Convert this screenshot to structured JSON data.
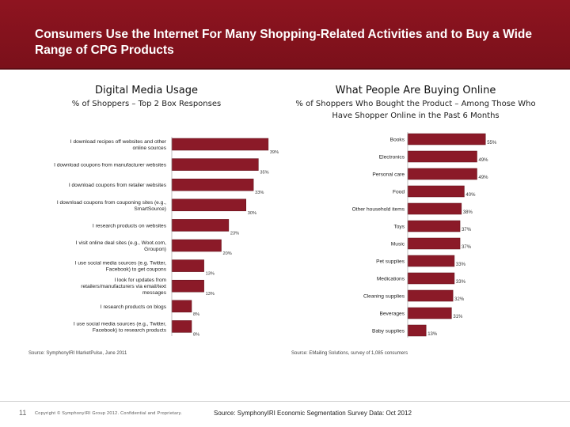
{
  "header": {
    "title": "Consumers Use the Internet For Many Shopping-Related Activities and to Buy a Wide Range of CPG Products"
  },
  "left_panel": {
    "title": "Digital Media Usage",
    "subtitle": "% of Shoppers – Top 2 Box Responses",
    "source": "Source: SymphonyIRI MarketPulse, June 2011"
  },
  "right_panel": {
    "title": "What People Are Buying Online",
    "subtitle": "% of Shoppers Who Bought the Product – Among Those Who Have Shopper Online in the Past 6 Months",
    "source": "Source: EMailing Solutions, survey of 1,085 consumers"
  },
  "footer": {
    "page_number": "11",
    "copyright": "Copyright © SymphonyIRI Group 2012. Confidential and Proprietary.",
    "source": "Source: SymphonyIRI Economic Segmentation Survey Data: Oct 2012"
  },
  "colors": {
    "header": "#8e1420",
    "bar": "#8b1a28",
    "bar_outline": "#5e0e17"
  },
  "chart_data": [
    {
      "type": "bar",
      "orientation": "horizontal",
      "title": "Digital Media Usage",
      "subtitle": "% of Shoppers – Top 2 Box Responses",
      "categories": [
        "I download recipes off websites and other online sources",
        "I download coupons from manufacturer websites",
        "I download coupons from retailer websites",
        "I download coupons from couponing sites (e.g., SmartSource)",
        "I research products on websites",
        "I visit online deal sites (e.g., Woot.com, Groupon)",
        "I use social media sources (e.g. Twitter, Facebook) to get coupons",
        "I look for updates from retailers/manufacturers via email/text messages",
        "I research products on blogs",
        "I use social media sources (e.g., Twitter, Facebook) to research products"
      ],
      "values": [
        39,
        35,
        33,
        30,
        23,
        20,
        13,
        13,
        8,
        8
      ],
      "value_labels": [
        "39%",
        "35%",
        "33%",
        "30%",
        "23%",
        "20%",
        "13%",
        "13%",
        "8%",
        "8%"
      ],
      "xlim": [
        0,
        40
      ],
      "grid": false,
      "legend": "none"
    },
    {
      "type": "bar",
      "orientation": "horizontal",
      "title": "What People Are Buying Online",
      "subtitle": "% of Shoppers Who Bought the Product – Among Those Who Have Shopper Online in the Past 6 Months",
      "categories": [
        "Books",
        "Electronics",
        "Personal care",
        "Food",
        "Other household items",
        "Toys",
        "Music",
        "Pet supplies",
        "Medications",
        "Cleaning supplies",
        "Beverages",
        "Baby supplies"
      ],
      "values": [
        55,
        49,
        49,
        40,
        38,
        37,
        37,
        33,
        33,
        32,
        31,
        13
      ],
      "value_labels": [
        "55%",
        "49%",
        "49%",
        "40%",
        "38%",
        "37%",
        "37%",
        "33%",
        "33%",
        "32%",
        "31%",
        "13%"
      ],
      "xlim": [
        0,
        56
      ],
      "grid": false,
      "legend": "none"
    }
  ]
}
